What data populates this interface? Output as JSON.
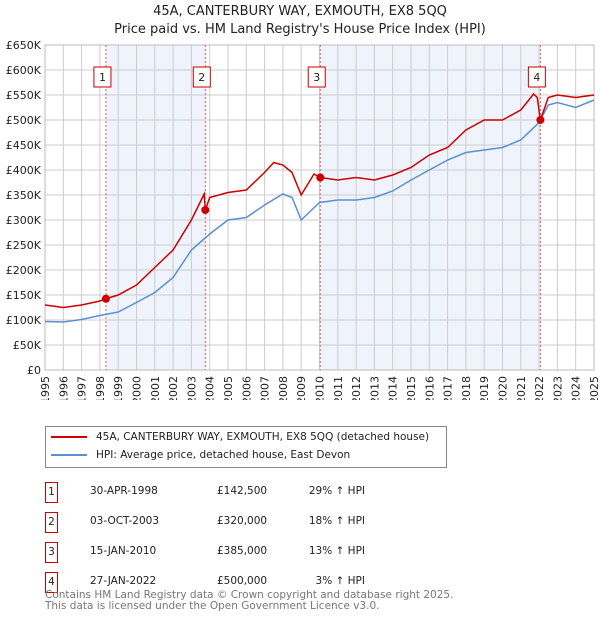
{
  "chart_data": {
    "type": "line",
    "title": "45A, CANTERBURY WAY, EXMOUTH, EX8 5QQ",
    "subtitle": "Price paid vs. HM Land Registry's House Price Index (HPI)",
    "xlim": [
      1995,
      2025
    ],
    "ylim": [
      0,
      650000
    ],
    "grid": true,
    "y_ticks": [
      0,
      50000,
      100000,
      150000,
      200000,
      250000,
      300000,
      350000,
      400000,
      450000,
      500000,
      550000,
      600000,
      650000
    ],
    "y_tick_labels": [
      "£0",
      "£50K",
      "£100K",
      "£150K",
      "£200K",
      "£250K",
      "£300K",
      "£350K",
      "£400K",
      "£450K",
      "£500K",
      "£550K",
      "£600K",
      "£650K"
    ],
    "x_ticks": [
      "1995",
      "1996",
      "1997",
      "1998",
      "1999",
      "2000",
      "2001",
      "2002",
      "2003",
      "2004",
      "2005",
      "2006",
      "2007",
      "2008",
      "2009",
      "2010",
      "2011",
      "2012",
      "2013",
      "2014",
      "2015",
      "2016",
      "2017",
      "2018",
      "2019",
      "2020",
      "2021",
      "2022",
      "2023",
      "2024",
      "2025"
    ],
    "series": [
      {
        "name": "45A, CANTERBURY WAY, EXMOUTH, EX8 5QQ (detached house)",
        "color": "#cc0000",
        "x": [
          1995,
          1996,
          1997,
          1998,
          1998.33,
          1999,
          2000,
          2001,
          2002,
          2003,
          2003.7,
          2003.76,
          2004,
          2005,
          2006,
          2007,
          2007.5,
          2008,
          2008.5,
          2009,
          2009.7,
          2010.04,
          2011,
          2012,
          2013,
          2014,
          2015,
          2016,
          2017,
          2018,
          2019,
          2020,
          2021,
          2021.7,
          2021.9,
          2022.07,
          2022.5,
          2023,
          2024,
          2025
        ],
        "y": [
          130000,
          125000,
          130000,
          138000,
          142500,
          150000,
          170000,
          205000,
          240000,
          300000,
          352000,
          320000,
          345000,
          355000,
          360000,
          395000,
          415000,
          410000,
          395000,
          350000,
          392000,
          385000,
          380000,
          385000,
          380000,
          390000,
          405000,
          430000,
          445000,
          480000,
          500000,
          500000,
          520000,
          552000,
          545000,
          500000,
          545000,
          550000,
          545000,
          550000
        ]
      },
      {
        "name": "HPI: Average price, detached house, East Devon",
        "color": "#5b8fd4",
        "x": [
          1995,
          1996,
          1997,
          1998,
          1999,
          2000,
          2001,
          2002,
          2003,
          2004,
          2005,
          2006,
          2007,
          2008,
          2008.5,
          2009,
          2010,
          2011,
          2012,
          2013,
          2014,
          2015,
          2016,
          2017,
          2018,
          2019,
          2020,
          2021,
          2022,
          2022.5,
          2023,
          2024,
          2025
        ],
        "y": [
          97000,
          96000,
          101000,
          109000,
          116000,
          135000,
          155000,
          185000,
          240000,
          272000,
          300000,
          305000,
          330000,
          352000,
          345000,
          300000,
          335000,
          340000,
          340000,
          345000,
          358000,
          380000,
          400000,
          420000,
          435000,
          440000,
          445000,
          460000,
          495000,
          530000,
          535000,
          525000,
          540000
        ]
      }
    ],
    "sales": [
      {
        "label": "1",
        "x": 1998.33,
        "price": 142500,
        "date": "30-APR-1998",
        "price_text": "£142,500",
        "hpi": "29% ↑ HPI"
      },
      {
        "label": "2",
        "x": 2003.76,
        "price": 320000,
        "date": "03-OCT-2003",
        "price_text": "£320,000",
        "hpi": "18% ↑ HPI"
      },
      {
        "label": "3",
        "x": 2010.04,
        "price": 385000,
        "date": "15-JAN-2010",
        "price_text": "£385,000",
        "hpi": "13% ↑ HPI"
      },
      {
        "label": "4",
        "x": 2022.07,
        "price": 500000,
        "date": "27-JAN-2022",
        "price_text": "£500,000",
        "hpi": "3% ↑ HPI"
      }
    ],
    "shaded_ranges": [
      [
        1998.33,
        2003.76
      ],
      [
        2010.04,
        2022.07
      ]
    ],
    "legend_position": "below"
  },
  "footer": {
    "line1": "Contains HM Land Registry data © Crown copyright and database right 2025.",
    "line2": "This data is licensed under the Open Government Licence v3.0."
  }
}
